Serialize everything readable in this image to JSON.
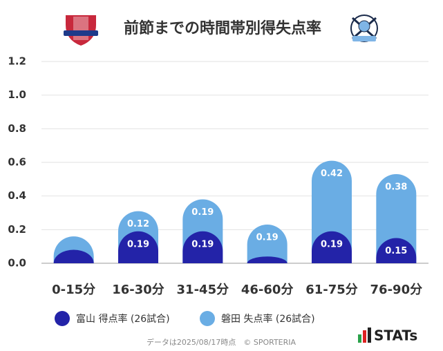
{
  "chart_data": {
    "type": "stacked_bar",
    "title": "前節までの時間帯別得失点率",
    "categories": [
      "0-15分",
      "16-30分",
      "31-45分",
      "46-60分",
      "61-75分",
      "76-90分"
    ],
    "series": [
      {
        "name": "富山 得点率 (26試合)",
        "color": "#2323a8",
        "values": [
          0.08,
          0.19,
          0.19,
          0.04,
          0.19,
          0.15
        ],
        "value_labels": [
          null,
          "0.19",
          "0.19",
          null,
          "0.19",
          "0.15"
        ]
      },
      {
        "name": "磐田 失点率 (26試合)",
        "color": "#6aade4",
        "values": [
          0.08,
          0.12,
          0.19,
          0.19,
          0.42,
          0.38
        ],
        "value_labels": [
          null,
          "0.12",
          "0.19",
          "0.19",
          "0.42",
          "0.38"
        ]
      }
    ],
    "ylim": [
      0,
      1.2
    ],
    "yticks": [
      {
        "value": 0,
        "label": "0.0"
      },
      0.2,
      0.4,
      0.6,
      0.8,
      {
        "value": 1,
        "label": "1.0"
      },
      1.2
    ],
    "grid": true,
    "footer": "データは2025/08/17時点　© SPORTERIA",
    "brand": "STATs"
  }
}
